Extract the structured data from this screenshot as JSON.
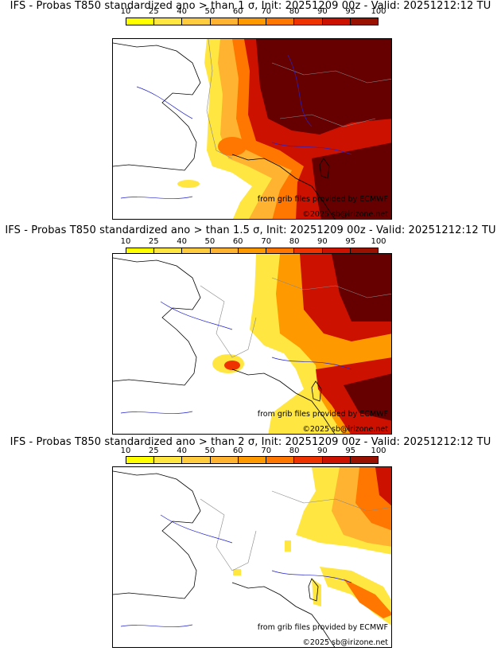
{
  "colorbar": {
    "ticks": [
      "10",
      "25",
      "40",
      "50",
      "60",
      "70",
      "80",
      "90",
      "95",
      "100"
    ],
    "colors": [
      "#ffff00",
      "#ffe640",
      "#ffcc40",
      "#ffb330",
      "#ff9900",
      "#ff7700",
      "#ee3300",
      "#cc1100",
      "#991100",
      "#660000"
    ]
  },
  "panels": [
    {
      "title": "IFS - Probas T850  standardized ano > than 1 σ, Init: 20251209 00z - Valid: 20251212:12 TU",
      "credit": "from grib files provided by ECMWF",
      "copyright": "©2025 sb@irizone.net"
    },
    {
      "title": "IFS - Probas T850  standardized ano > than 1.5 σ, Init: 20251209 00z - Valid: 20251212:12 TU",
      "credit": "from grib files provided by ECMWF",
      "copyright": "©2025 sb@irizone.net"
    },
    {
      "title": "IFS - Probas T850  standardized ano > than 2 σ, Init: 20251209 00z - Valid: 20251212:12 TU",
      "credit": "from grib files provided by ECMWF",
      "copyright": "©2025 sb@irizone.net"
    }
  ]
}
